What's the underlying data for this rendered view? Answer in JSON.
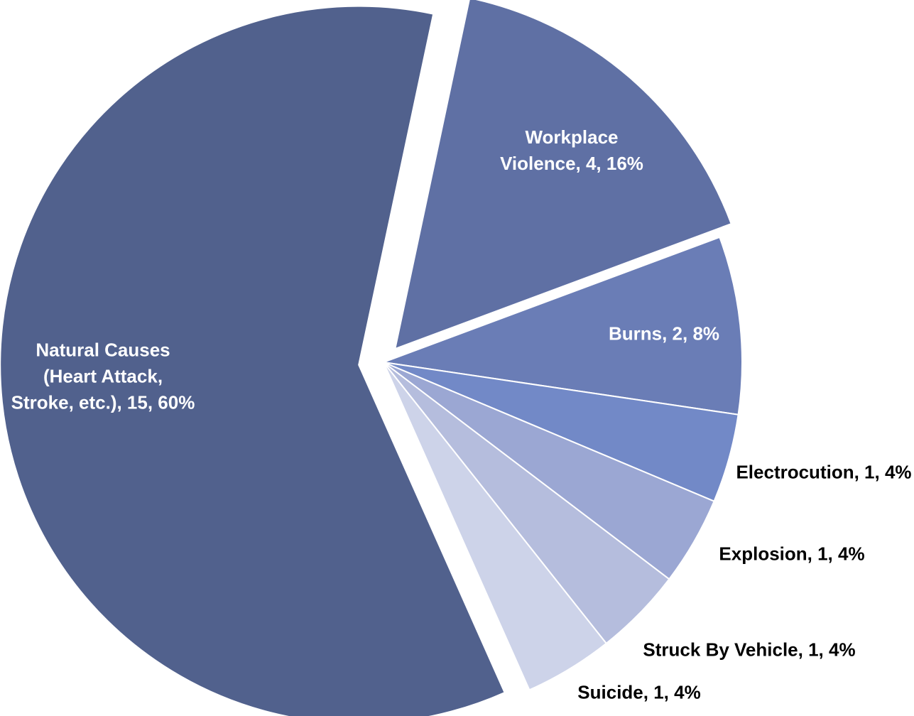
{
  "chart_data": {
    "type": "pie",
    "values": [
      15,
      4,
      2,
      1,
      1,
      1,
      1
    ],
    "value_labels": [
      "Natural Causes (Heart Attack, Stroke, etc.), 15, 60%",
      "Workplace Violence, 4, 16%",
      "Burns, 2, 8%",
      "Electrocution, 1, 4%",
      "Explosion, 1, 4%",
      "Struck By Vehicle, 1, 4%",
      "Suicide, 1, 4%"
    ],
    "colors": [
      "#51618d",
      "#5f70a4",
      "#6a7db6",
      "#7289c7",
      "#9ba7d3",
      "#b5bddd",
      "#cdd3e9"
    ]
  }
}
